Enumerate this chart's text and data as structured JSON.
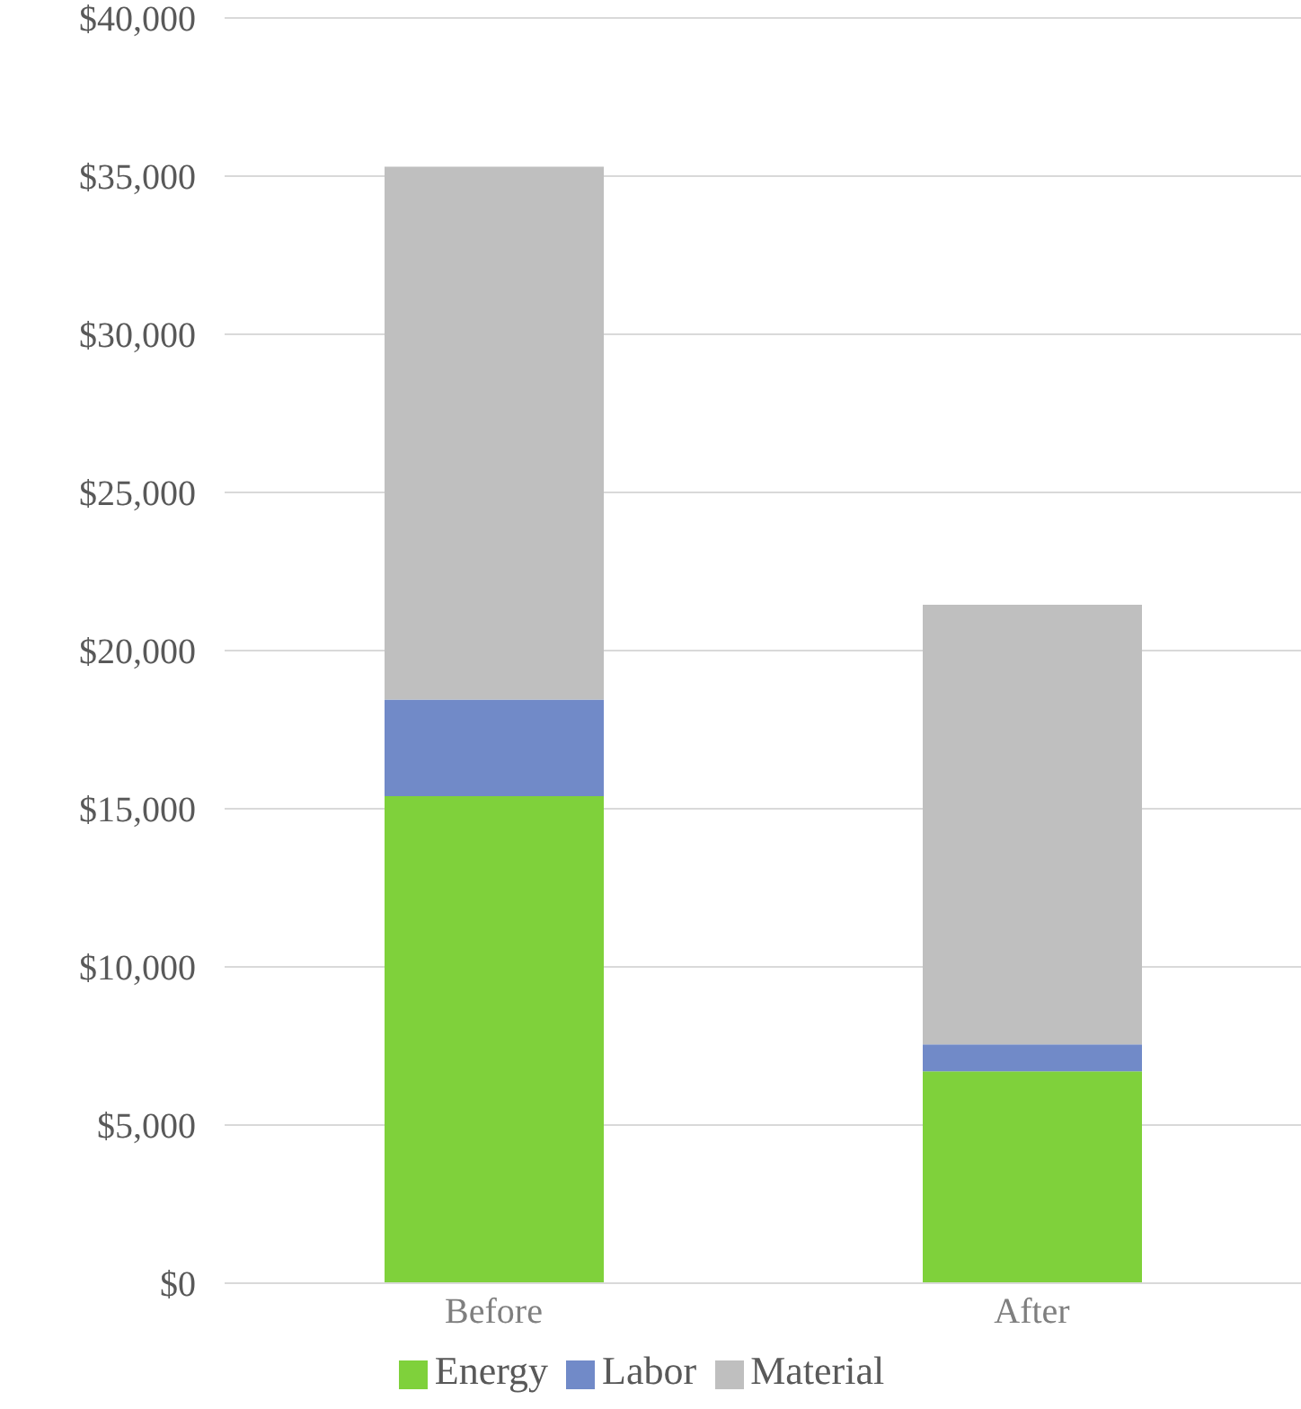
{
  "chart_data": {
    "type": "bar",
    "stacked": true,
    "categories": [
      "Before",
      "After"
    ],
    "series": [
      {
        "name": "Energy",
        "color": "#7fd13b",
        "values": [
          15400,
          6700
        ]
      },
      {
        "name": "Labor",
        "color": "#718ac8",
        "values": [
          3050,
          850
        ]
      },
      {
        "name": "Material",
        "color": "#bfbfbf",
        "values": [
          16850,
          13900
        ]
      }
    ],
    "ylim": [
      0,
      40000
    ],
    "yticks": [
      {
        "value": 0,
        "label": "$0"
      },
      {
        "value": 5000,
        "label": "$5,000"
      },
      {
        "value": 10000,
        "label": "$10,000"
      },
      {
        "value": 15000,
        "label": "$15,000"
      },
      {
        "value": 20000,
        "label": "$20,000"
      },
      {
        "value": 25000,
        "label": "$25,000"
      },
      {
        "value": 30000,
        "label": "$30,000"
      },
      {
        "value": 35000,
        "label": "$35,000"
      },
      {
        "value": 40000,
        "label": "$40,000"
      }
    ],
    "grid": "y",
    "legend": "bottom"
  }
}
